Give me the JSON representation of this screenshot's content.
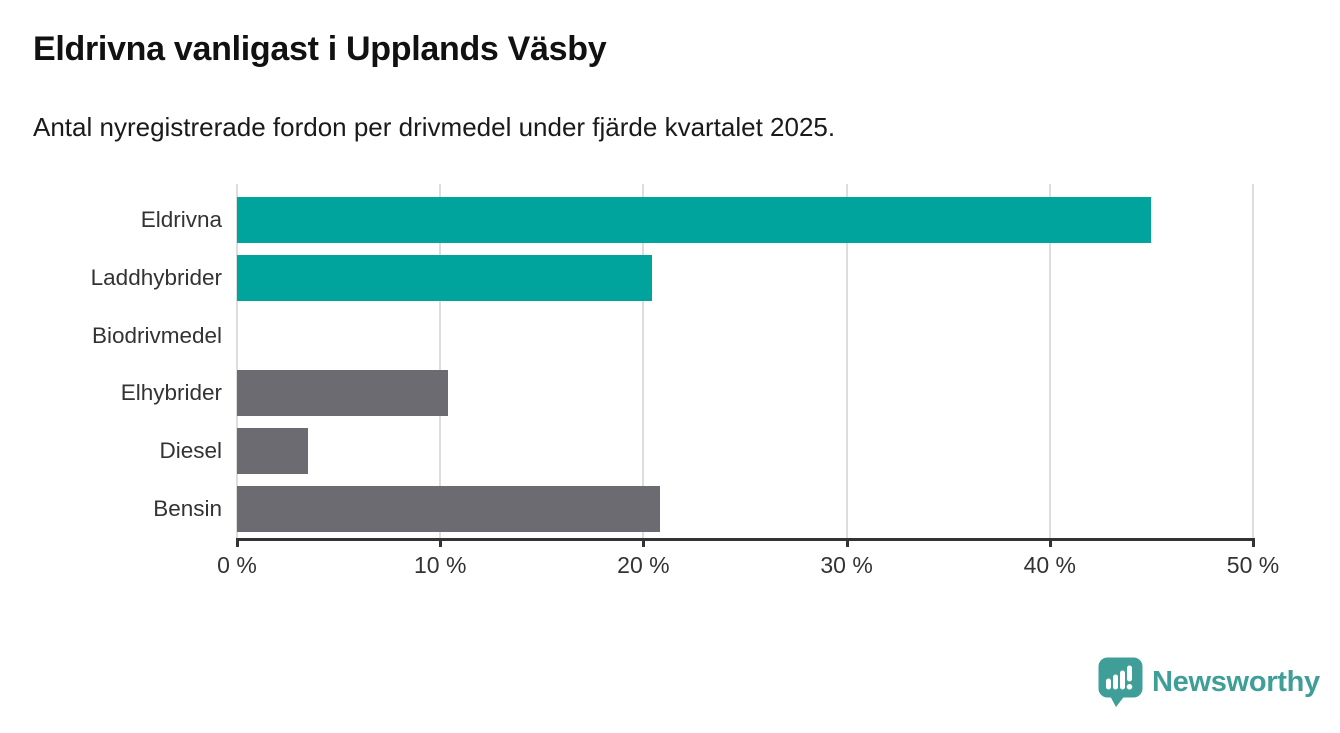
{
  "title": "Eldrivna vanligast i Upplands Väsby",
  "subtitle": "Antal nyregistrerade fordon per drivmedel under fjärde kvartalet 2025.",
  "chart_data": {
    "type": "bar",
    "orientation": "horizontal",
    "categories": [
      "Eldrivna",
      "Laddhybrider",
      "Biodrivmedel",
      "Elhybrider",
      "Diesel",
      "Bensin"
    ],
    "values": [
      45.0,
      20.4,
      0,
      10.4,
      3.5,
      20.8
    ],
    "unit": "%",
    "xlabel": "",
    "ylabel": "",
    "xlim": [
      0,
      50
    ],
    "x_ticks": [
      0,
      10,
      20,
      30,
      40,
      50
    ],
    "x_tick_labels": [
      "0 %",
      "10 %",
      "20 %",
      "30 %",
      "40 %",
      "50 %"
    ],
    "bar_colors": [
      "#00a49c",
      "#00a49c",
      "#6d6b72",
      "#6d6b72",
      "#6d6b72",
      "#6d6b72"
    ],
    "grid": true,
    "legend": "none"
  },
  "colors": {
    "teal_bar": "#00a49c",
    "gray_bar": "#6d6b72",
    "gridline": "#dddddd",
    "axis": "#333333",
    "logo_teal": "#3f9e98"
  },
  "branding": {
    "logo_text": "Newsworthy",
    "logo_icon": "newsworthy-chart-bubble-icon"
  }
}
